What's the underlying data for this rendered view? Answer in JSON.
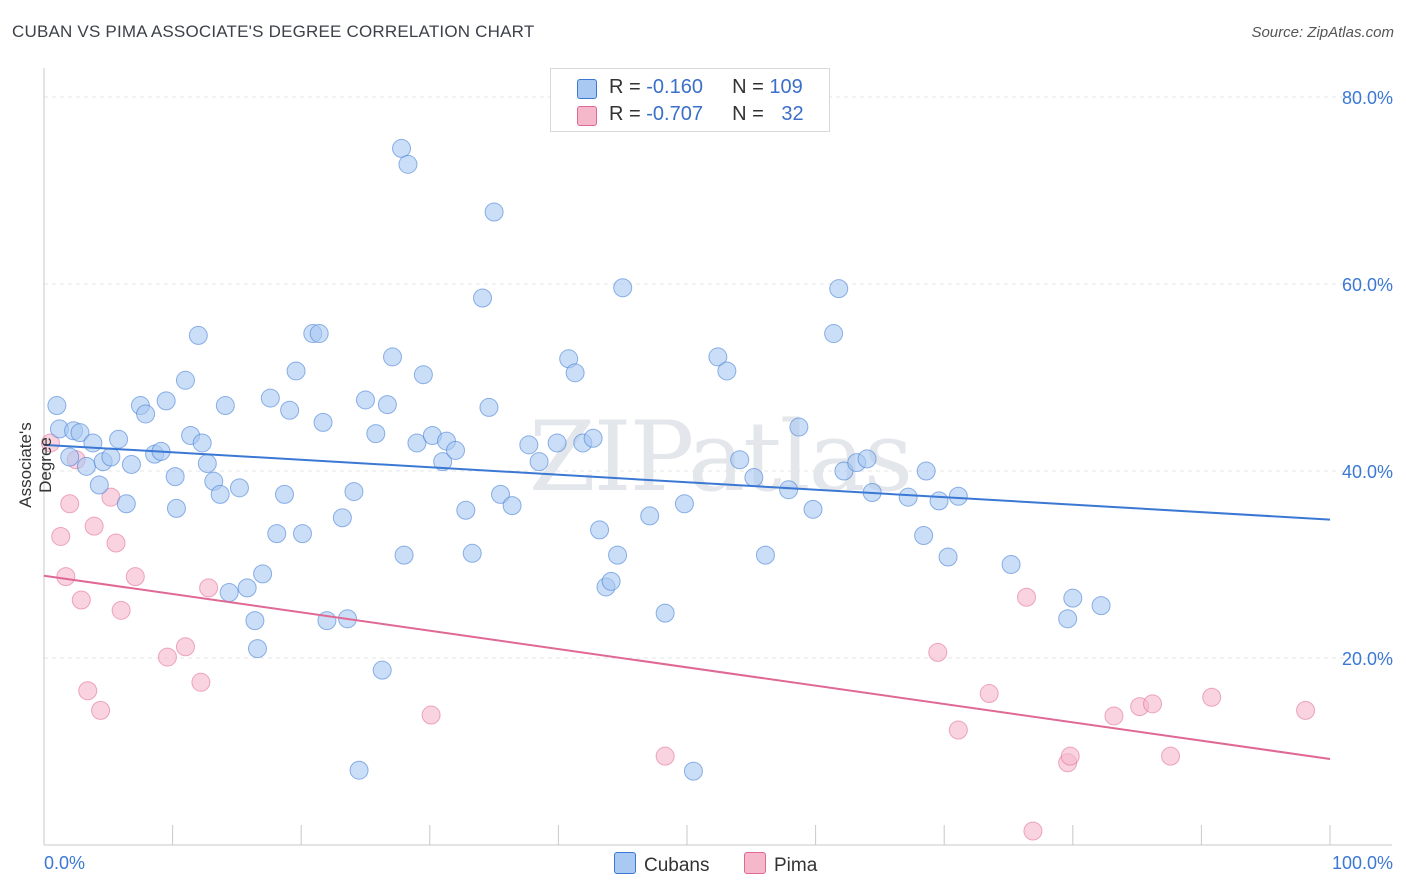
{
  "title": "CUBAN VS PIMA ASSOCIATE'S DEGREE CORRELATION CHART",
  "source": "Source: ZipAtlas.com",
  "watermark": "ZIPatlas",
  "legend": {
    "rows": [
      {
        "r_label": "R = ",
        "r_value": "-0.160",
        "n_label": "N = ",
        "n_value": "109",
        "color": "#a9c8f2"
      },
      {
        "r_label": "R = ",
        "r_value": "-0.707",
        "n_label": "N = ",
        "n_value": "32",
        "color": "#f5b8cb"
      }
    ]
  },
  "bottom_legend": [
    {
      "label": "Cubans",
      "color": "#a9c8f2"
    },
    {
      "label": "Pima",
      "color": "#f5b8cb"
    }
  ],
  "chart_data": {
    "type": "scatter",
    "title": "CUBAN VS PIMA ASSOCIATE'S DEGREE CORRELATION CHART",
    "xlabel": "",
    "ylabel": "Associate's Degree",
    "xlim": [
      0,
      100
    ],
    "ylim": [
      0,
      80
    ],
    "x_tick_labels": [
      "0.0%",
      "100.0%"
    ],
    "y_ticks": [
      20,
      40,
      60,
      80
    ],
    "y_tick_labels": [
      "20.0%",
      "40.0%",
      "60.0%",
      "80.0%"
    ],
    "grid": true,
    "series": [
      {
        "name": "Cubans",
        "color": "#3b78d4",
        "fill": "#a9c8f2",
        "trend": {
          "x": [
            0,
            100
          ],
          "y": [
            42.8,
            34.8
          ]
        },
        "points": [
          [
            1,
            47
          ],
          [
            1.2,
            44.5
          ],
          [
            2,
            41.5
          ],
          [
            2.3,
            44.3
          ],
          [
            2.8,
            44.1
          ],
          [
            3.3,
            40.5
          ],
          [
            3.8,
            43
          ],
          [
            4.3,
            38.5
          ],
          [
            4.6,
            41
          ],
          [
            5.2,
            41.5
          ],
          [
            5.8,
            43.4
          ],
          [
            6.4,
            36.5
          ],
          [
            6.8,
            40.7
          ],
          [
            7.5,
            47
          ],
          [
            7.9,
            46.1
          ],
          [
            8.6,
            41.8
          ],
          [
            9.1,
            42.1
          ],
          [
            9.5,
            47.5
          ],
          [
            10.2,
            39.4
          ],
          [
            10.3,
            36
          ],
          [
            11,
            49.7
          ],
          [
            11.4,
            43.8
          ],
          [
            12,
            54.5
          ],
          [
            12.3,
            43
          ],
          [
            12.7,
            40.8
          ],
          [
            13.2,
            38.9
          ],
          [
            13.7,
            37.5
          ],
          [
            14.1,
            47
          ],
          [
            14.4,
            27
          ],
          [
            15.2,
            38.2
          ],
          [
            15.8,
            27.5
          ],
          [
            16.4,
            24
          ],
          [
            16.6,
            21
          ],
          [
            17,
            29
          ],
          [
            17.6,
            47.8
          ],
          [
            18.1,
            33.3
          ],
          [
            18.7,
            37.5
          ],
          [
            19.1,
            46.5
          ],
          [
            19.6,
            50.7
          ],
          [
            20.1,
            33.3
          ],
          [
            20.9,
            54.7
          ],
          [
            21.4,
            54.7
          ],
          [
            21.7,
            45.2
          ],
          [
            22,
            24
          ],
          [
            23.2,
            35
          ],
          [
            23.6,
            24.2
          ],
          [
            24.1,
            37.8
          ],
          [
            24.5,
            8
          ],
          [
            25,
            47.6
          ],
          [
            25.8,
            44
          ],
          [
            26.3,
            18.7
          ],
          [
            26.7,
            47.1
          ],
          [
            27.1,
            52.2
          ],
          [
            27.8,
            74.5
          ],
          [
            28,
            31
          ],
          [
            28.3,
            72.8
          ],
          [
            29,
            43
          ],
          [
            29.5,
            50.3
          ],
          [
            30.2,
            43.8
          ],
          [
            31,
            41
          ],
          [
            31.3,
            43.2
          ],
          [
            32,
            42.2
          ],
          [
            32.8,
            35.8
          ],
          [
            33.3,
            31.2
          ],
          [
            34.1,
            58.5
          ],
          [
            34.6,
            46.8
          ],
          [
            35,
            67.7
          ],
          [
            35.5,
            37.5
          ],
          [
            36.4,
            36.3
          ],
          [
            37.7,
            42.8
          ],
          [
            38.5,
            41
          ],
          [
            39.9,
            43
          ],
          [
            40.8,
            52
          ],
          [
            41.3,
            50.5
          ],
          [
            41.9,
            43
          ],
          [
            42.7,
            43.5
          ],
          [
            43.2,
            33.7
          ],
          [
            43.7,
            27.6
          ],
          [
            44.1,
            28.2
          ],
          [
            44.6,
            31
          ],
          [
            45,
            59.6
          ],
          [
            47.1,
            35.2
          ],
          [
            48.3,
            24.8
          ],
          [
            49.8,
            36.5
          ],
          [
            50.5,
            7.9
          ],
          [
            52.4,
            52.2
          ],
          [
            53.1,
            50.7
          ],
          [
            54.1,
            41.2
          ],
          [
            55.2,
            39.3
          ],
          [
            56.1,
            31
          ],
          [
            57.9,
            38
          ],
          [
            58.7,
            44.7
          ],
          [
            59.8,
            35.9
          ],
          [
            61.4,
            54.7
          ],
          [
            61.8,
            59.5
          ],
          [
            62.2,
            40
          ],
          [
            63.2,
            40.9
          ],
          [
            64,
            41.3
          ],
          [
            64.4,
            37.7
          ],
          [
            67.2,
            37.2
          ],
          [
            68.4,
            33.1
          ],
          [
            68.6,
            40
          ],
          [
            69.6,
            36.8
          ],
          [
            70.3,
            30.8
          ],
          [
            71.1,
            37.3
          ],
          [
            75.2,
            30
          ],
          [
            79.6,
            24.2
          ],
          [
            80,
            26.4
          ],
          [
            82.2,
            25.6
          ]
        ]
      },
      {
        "name": "Pima",
        "color": "#e06894",
        "fill": "#f5b8cb",
        "trend": {
          "x": [
            0,
            100
          ],
          "y": [
            28.8,
            9.2
          ]
        },
        "points": [
          [
            0.5,
            43
          ],
          [
            1.3,
            33
          ],
          [
            1.7,
            28.7
          ],
          [
            2,
            36.5
          ],
          [
            2.5,
            41.2
          ],
          [
            2.9,
            26.2
          ],
          [
            3.4,
            16.5
          ],
          [
            3.9,
            34.1
          ],
          [
            4.4,
            14.4
          ],
          [
            5.2,
            37.2
          ],
          [
            5.6,
            32.3
          ],
          [
            6,
            25.1
          ],
          [
            7.1,
            28.7
          ],
          [
            9.6,
            20.1
          ],
          [
            11,
            21.2
          ],
          [
            12.2,
            17.4
          ],
          [
            12.8,
            27.5
          ],
          [
            30.1,
            13.9
          ],
          [
            48.3,
            9.5
          ],
          [
            69.5,
            20.6
          ],
          [
            71.1,
            12.3
          ],
          [
            73.5,
            16.2
          ],
          [
            76.4,
            26.5
          ],
          [
            76.9,
            1.5
          ],
          [
            79.6,
            8.8
          ],
          [
            79.8,
            9.5
          ],
          [
            83.2,
            13.8
          ],
          [
            85.2,
            14.8
          ],
          [
            86.2,
            15.1
          ],
          [
            87.6,
            9.5
          ],
          [
            90.8,
            15.8
          ],
          [
            98.1,
            14.4
          ]
        ]
      }
    ]
  }
}
